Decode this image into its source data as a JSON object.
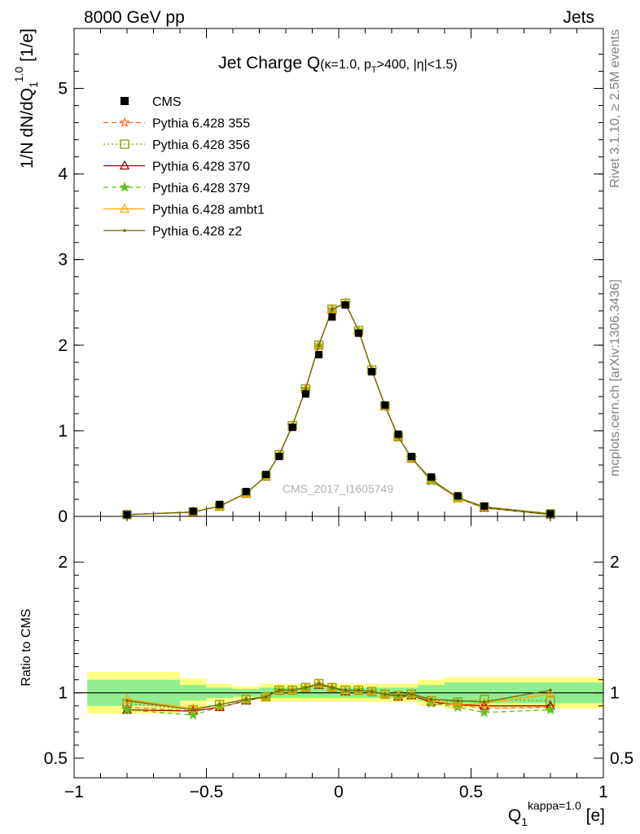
{
  "header": {
    "left": "8000 GeV pp",
    "right": "Jets"
  },
  "side_text": {
    "rivet": "Rivet 3.1.10, ≥ 2.5M events",
    "mcplots": "mcplots.cern.ch [arXiv:1306.3436]"
  },
  "watermark": "CMS_2017_I1605749",
  "chart_data": [
    {
      "type": "scatter",
      "panel": "main",
      "title": {
        "main": "Jet Charge Q",
        "sub": "(κ=1.0, p",
        "sub_T": "T",
        "sub_rest": ">400, |η|<1.5)"
      },
      "ylabel": "1/N dN/dQ",
      "ylabel_sub": "1",
      "ylabel_sup": "1.0",
      "ylabel_unit": " [1/e]",
      "xlim": [
        -1.0,
        1.0
      ],
      "ylim": [
        0,
        5.7
      ],
      "yticks": [
        0,
        1,
        2,
        3,
        4,
        5
      ],
      "x": [
        -0.8,
        -0.55,
        -0.45,
        -0.35,
        -0.275,
        -0.225,
        -0.175,
        -0.125,
        -0.075,
        -0.025,
        0.025,
        0.075,
        0.125,
        0.175,
        0.225,
        0.275,
        0.35,
        0.45,
        0.55,
        0.8
      ],
      "series": [
        {
          "name": "CMS",
          "color": "#000000",
          "style": "data",
          "values": [
            0.02,
            0.06,
            0.14,
            0.29,
            0.49,
            0.7,
            1.04,
            1.43,
            1.89,
            2.33,
            2.47,
            2.14,
            1.69,
            1.3,
            0.96,
            0.7,
            0.46,
            0.24,
            0.12,
            0.03
          ],
          "errors": [
            0.005,
            0.008,
            0.01,
            0.015,
            0.02,
            0.02,
            0.025,
            0.03,
            0.035,
            0.04,
            0.04,
            0.035,
            0.03,
            0.025,
            0.02,
            0.02,
            0.015,
            0.01,
            0.008,
            0.005
          ]
        },
        {
          "name": "Pythia 6.428 355",
          "color": "#ff6c23",
          "style": "dashed",
          "marker": "star-open",
          "values": [
            0.02,
            0.05,
            0.12,
            0.27,
            0.47,
            0.72,
            1.06,
            1.49,
            2.0,
            2.42,
            2.49,
            2.17,
            1.71,
            1.29,
            0.93,
            0.68,
            0.42,
            0.21,
            0.1,
            0.02
          ]
        },
        {
          "name": "Pythia 6.428 356",
          "color": "#80a000",
          "style": "dotted",
          "marker": "square-open",
          "values": [
            0.02,
            0.05,
            0.12,
            0.27,
            0.47,
            0.72,
            1.06,
            1.49,
            2.0,
            2.42,
            2.49,
            2.17,
            1.71,
            1.29,
            0.93,
            0.68,
            0.43,
            0.22,
            0.11,
            0.03
          ]
        },
        {
          "name": "Pythia 6.428 370",
          "color": "#a00000",
          "style": "solid",
          "marker": "triangle-open",
          "values": [
            0.02,
            0.05,
            0.12,
            0.27,
            0.47,
            0.72,
            1.06,
            1.49,
            2.0,
            2.42,
            2.49,
            2.17,
            1.71,
            1.29,
            0.93,
            0.68,
            0.42,
            0.21,
            0.1,
            0.02
          ]
        },
        {
          "name": "Pythia 6.428 379",
          "color": "#60c020",
          "style": "dashed",
          "marker": "star",
          "values": [
            0.02,
            0.05,
            0.12,
            0.27,
            0.47,
            0.72,
            1.06,
            1.49,
            2.0,
            2.42,
            2.49,
            2.17,
            1.71,
            1.29,
            0.93,
            0.68,
            0.41,
            0.21,
            0.1,
            0.02
          ]
        },
        {
          "name": "Pythia 6.428 ambt1",
          "color": "#ffa500",
          "style": "solid",
          "marker": "triangle-open",
          "values": [
            0.02,
            0.05,
            0.12,
            0.27,
            0.47,
            0.72,
            1.06,
            1.49,
            2.0,
            2.42,
            2.49,
            2.17,
            1.71,
            1.29,
            0.93,
            0.68,
            0.43,
            0.21,
            0.11,
            0.03
          ]
        },
        {
          "name": "Pythia 6.428 z2",
          "color": "#6b6b00",
          "style": "solid",
          "marker": "dot",
          "values": [
            0.02,
            0.05,
            0.12,
            0.27,
            0.47,
            0.72,
            1.06,
            1.49,
            2.0,
            2.42,
            2.49,
            2.17,
            1.71,
            1.29,
            0.93,
            0.68,
            0.43,
            0.22,
            0.11,
            0.03
          ]
        }
      ]
    },
    {
      "type": "line",
      "panel": "ratio",
      "ylabel": "Ratio to CMS",
      "xlabel": "Q",
      "xlabel_sub": "1",
      "xlabel_sup": "kappa=1.0",
      "xlabel_unit": " [e]",
      "xlim": [
        -1.0,
        1.0
      ],
      "ylim": [
        0.35,
        2.35
      ],
      "yticks": [
        0.5,
        1,
        2
      ],
      "xticks": [
        -1,
        -0.5,
        0,
        0.5,
        1
      ],
      "xtick_labels": [
        "−1",
        "−0.5",
        "0",
        "0.5",
        "1"
      ],
      "bands": {
        "edges": [
          -0.6,
          -0.5,
          -0.4,
          -0.3,
          -0.25,
          -0.2,
          -0.15,
          -0.1,
          -0.05,
          0,
          0.05,
          0.1,
          0.15,
          0.2,
          0.25,
          0.3,
          0.4,
          0.5,
          0.6
        ],
        "inner": [
          [
            -0.6,
            0.1
          ],
          [
            -0.5,
            0.06
          ],
          [
            -0.4,
            0.04
          ],
          [
            -0.3,
            0.03
          ],
          [
            0.3,
            0.04
          ],
          [
            0.4,
            0.06
          ],
          [
            0.6,
            0.08
          ],
          [
            1.0,
            0.08
          ]
        ],
        "outer": [
          [
            -0.6,
            0.16
          ],
          [
            -0.5,
            0.11
          ],
          [
            -0.4,
            0.07
          ],
          [
            -0.3,
            0.05
          ],
          [
            0.3,
            0.07
          ],
          [
            0.4,
            0.1
          ],
          [
            0.6,
            0.12
          ],
          [
            1.0,
            0.12
          ]
        ],
        "x_start": -0.95,
        "inner_color": "#90ee90",
        "outer_color": "#ffff80"
      },
      "x": [
        -0.8,
        -0.55,
        -0.45,
        -0.35,
        -0.275,
        -0.225,
        -0.175,
        -0.125,
        -0.075,
        -0.025,
        0.025,
        0.075,
        0.125,
        0.175,
        0.225,
        0.275,
        0.35,
        0.45,
        0.55,
        0.8
      ],
      "series": [
        {
          "name": "Pythia 6.428 355",
          "color": "#ff6c23",
          "style": "dashed",
          "marker": "star-open",
          "values": [
            0.89,
            0.86,
            0.89,
            0.94,
            0.97,
            1.02,
            1.02,
            1.04,
            1.06,
            1.04,
            1.01,
            1.02,
            1.01,
            0.99,
            0.97,
            0.98,
            0.92,
            0.91,
            0.88,
            0.89
          ]
        },
        {
          "name": "Pythia 6.428 356",
          "color": "#80a000",
          "style": "dotted",
          "marker": "square-open",
          "values": [
            0.92,
            0.87,
            0.91,
            0.95,
            0.97,
            1.02,
            1.02,
            1.04,
            1.07,
            1.04,
            1.02,
            1.02,
            1.01,
            0.99,
            0.98,
            0.99,
            0.94,
            0.93,
            0.95,
            0.94
          ]
        },
        {
          "name": "Pythia 6.428 370",
          "color": "#a00000",
          "style": "solid",
          "marker": "triangle-open",
          "values": [
            0.87,
            0.86,
            0.89,
            0.94,
            0.97,
            1.02,
            1.02,
            1.04,
            1.06,
            1.04,
            1.01,
            1.02,
            1.01,
            0.99,
            0.97,
            0.98,
            0.93,
            0.91,
            0.9,
            0.9
          ]
        },
        {
          "name": "Pythia 6.428 379",
          "color": "#60c020",
          "style": "dashed",
          "marker": "star",
          "values": [
            0.87,
            0.83,
            0.89,
            0.94,
            0.97,
            1.02,
            1.02,
            1.04,
            1.06,
            1.04,
            1.01,
            1.02,
            1.01,
            0.99,
            0.97,
            0.98,
            0.92,
            0.89,
            0.85,
            0.87
          ]
        },
        {
          "name": "Pythia 6.428 ambt1",
          "color": "#ffa500",
          "style": "solid",
          "marker": "triangle-open",
          "values": [
            0.95,
            0.88,
            0.91,
            0.95,
            0.97,
            1.02,
            1.02,
            1.04,
            1.07,
            1.04,
            1.02,
            1.02,
            1.01,
            0.99,
            0.98,
            0.99,
            0.94,
            0.91,
            0.92,
            0.99
          ]
        },
        {
          "name": "Pythia 6.428 z2",
          "color": "#6b6b00",
          "style": "solid",
          "marker": "dot",
          "values": [
            0.94,
            0.87,
            0.91,
            0.95,
            0.97,
            1.02,
            1.02,
            1.04,
            1.07,
            1.04,
            1.02,
            1.02,
            1.01,
            0.99,
            0.98,
            0.99,
            0.95,
            0.94,
            0.93,
            1.02
          ]
        }
      ]
    }
  ]
}
